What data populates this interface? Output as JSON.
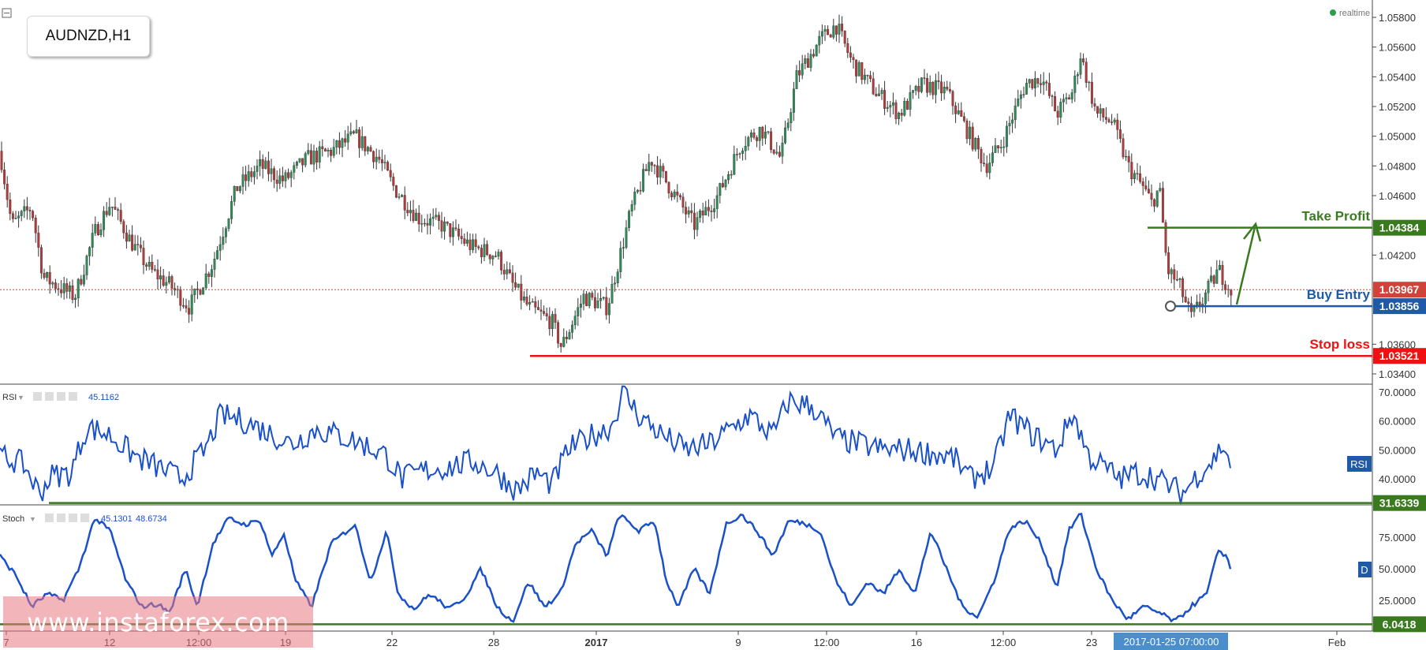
{
  "symbol": "AUDNZD,H1",
  "status": "realtime",
  "watermark": "www.instaforex.com",
  "price_axis": [
    "1.05800",
    "1.05600",
    "1.05400",
    "1.05200",
    "1.05000",
    "1.04800",
    "1.04600",
    "1.04200",
    "1.03600",
    "1.03400"
  ],
  "price_tags": {
    "take_profit": {
      "text": "Take Profit",
      "value": "1.04384",
      "price": 1.04384,
      "color": "#3a7a1e"
    },
    "current": {
      "value": "1.03967",
      "price": 1.03967,
      "color": "#d0433a"
    },
    "buy_entry": {
      "text": "Buy Entry",
      "value": "1.03856",
      "price": 1.03856,
      "color": "#1e5aa8"
    },
    "stop_loss": {
      "text": "Stop loss",
      "value": "1.03521",
      "price": 1.03521,
      "color": "#ee1111"
    }
  },
  "rsi": {
    "name": "RSI",
    "value": "45.1162",
    "axis": [
      "70.0000",
      "60.0000",
      "50.0000",
      "40.0000"
    ],
    "badge": "RSI",
    "level": "31.6339",
    "level_num": 31.6339
  },
  "stoch": {
    "name": "Stoch",
    "value1": "45.1301",
    "value2": "48.6734",
    "axis": [
      "75.0000",
      "50.0000",
      "25.0000"
    ],
    "badge": "D",
    "level": "6.0418",
    "level_num": 6.0418
  },
  "time_axis": [
    "7",
    "12",
    "12:00",
    "19",
    "22",
    "28",
    "2017",
    "9",
    "12:00",
    "16",
    "12:00",
    "23",
    "Feb"
  ],
  "time_cursor": "2017-01-25 07:00:00",
  "colors": {
    "up": "#2e8b57",
    "down": "#b23a3a",
    "wick": "#333333",
    "line": "#1a50c8",
    "green": "#3a7a1e"
  }
}
